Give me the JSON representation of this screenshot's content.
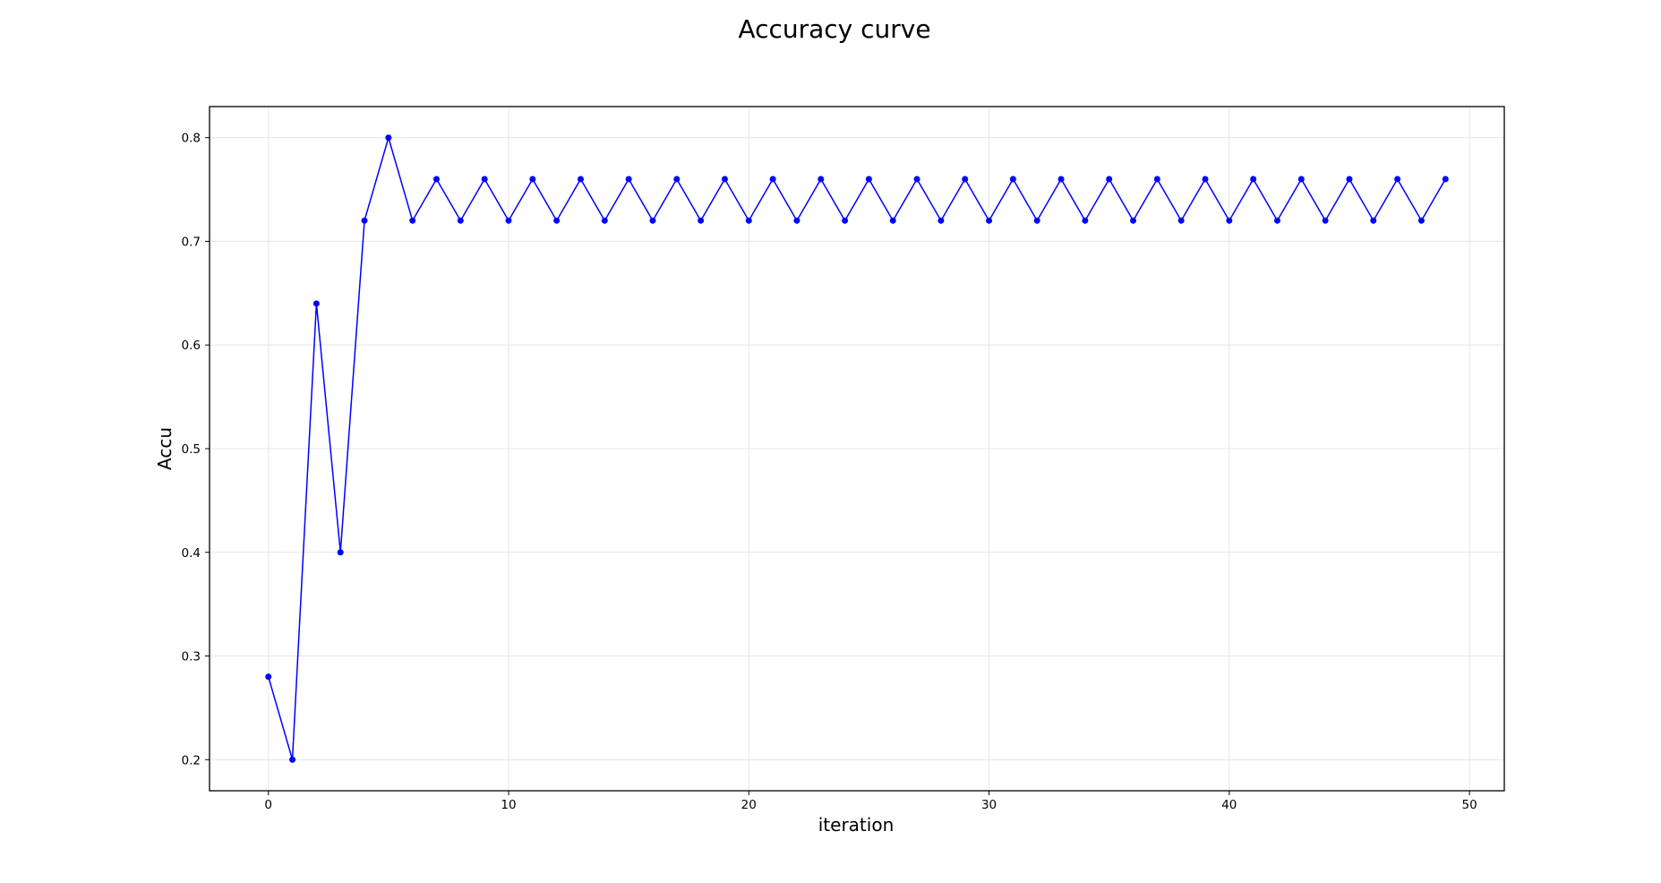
{
  "chart_data": {
    "type": "line",
    "title": "Accuracy curve",
    "xlabel": "iteration",
    "ylabel": "Accu",
    "xlim": [
      -2.45,
      51.45
    ],
    "ylim": [
      0.17,
      0.83
    ],
    "xticks": [
      0,
      10,
      20,
      30,
      40,
      50
    ],
    "yticks": [
      0.2,
      0.3,
      0.4,
      0.5,
      0.6,
      0.7,
      0.8
    ],
    "xtick_labels": [
      "0",
      "10",
      "20",
      "30",
      "40",
      "50"
    ],
    "ytick_labels": [
      "0.2",
      "0.3",
      "0.4",
      "0.5",
      "0.6",
      "0.7",
      "0.8"
    ],
    "grid": true,
    "legend": false,
    "series": [
      {
        "color": "#0000ff",
        "marker": "circle",
        "x": [
          0,
          1,
          2,
          3,
          4,
          5,
          6,
          7,
          8,
          9,
          10,
          11,
          12,
          13,
          14,
          15,
          16,
          17,
          18,
          19,
          20,
          21,
          22,
          23,
          24,
          25,
          26,
          27,
          28,
          29,
          30,
          31,
          32,
          33,
          34,
          35,
          36,
          37,
          38,
          39,
          40,
          41,
          42,
          43,
          44,
          45,
          46,
          47,
          48,
          49
        ],
        "values": [
          0.28,
          0.2,
          0.64,
          0.4,
          0.72,
          0.8,
          0.72,
          0.76,
          0.72,
          0.76,
          0.72,
          0.76,
          0.72,
          0.76,
          0.72,
          0.76,
          0.72,
          0.76,
          0.72,
          0.76,
          0.72,
          0.76,
          0.72,
          0.76,
          0.72,
          0.76,
          0.72,
          0.76,
          0.72,
          0.76,
          0.72,
          0.76,
          0.72,
          0.76,
          0.72,
          0.76,
          0.72,
          0.76,
          0.72,
          0.76,
          0.72,
          0.76,
          0.72,
          0.76,
          0.72,
          0.76,
          0.72,
          0.76,
          0.72,
          0.76
        ]
      }
    ]
  }
}
